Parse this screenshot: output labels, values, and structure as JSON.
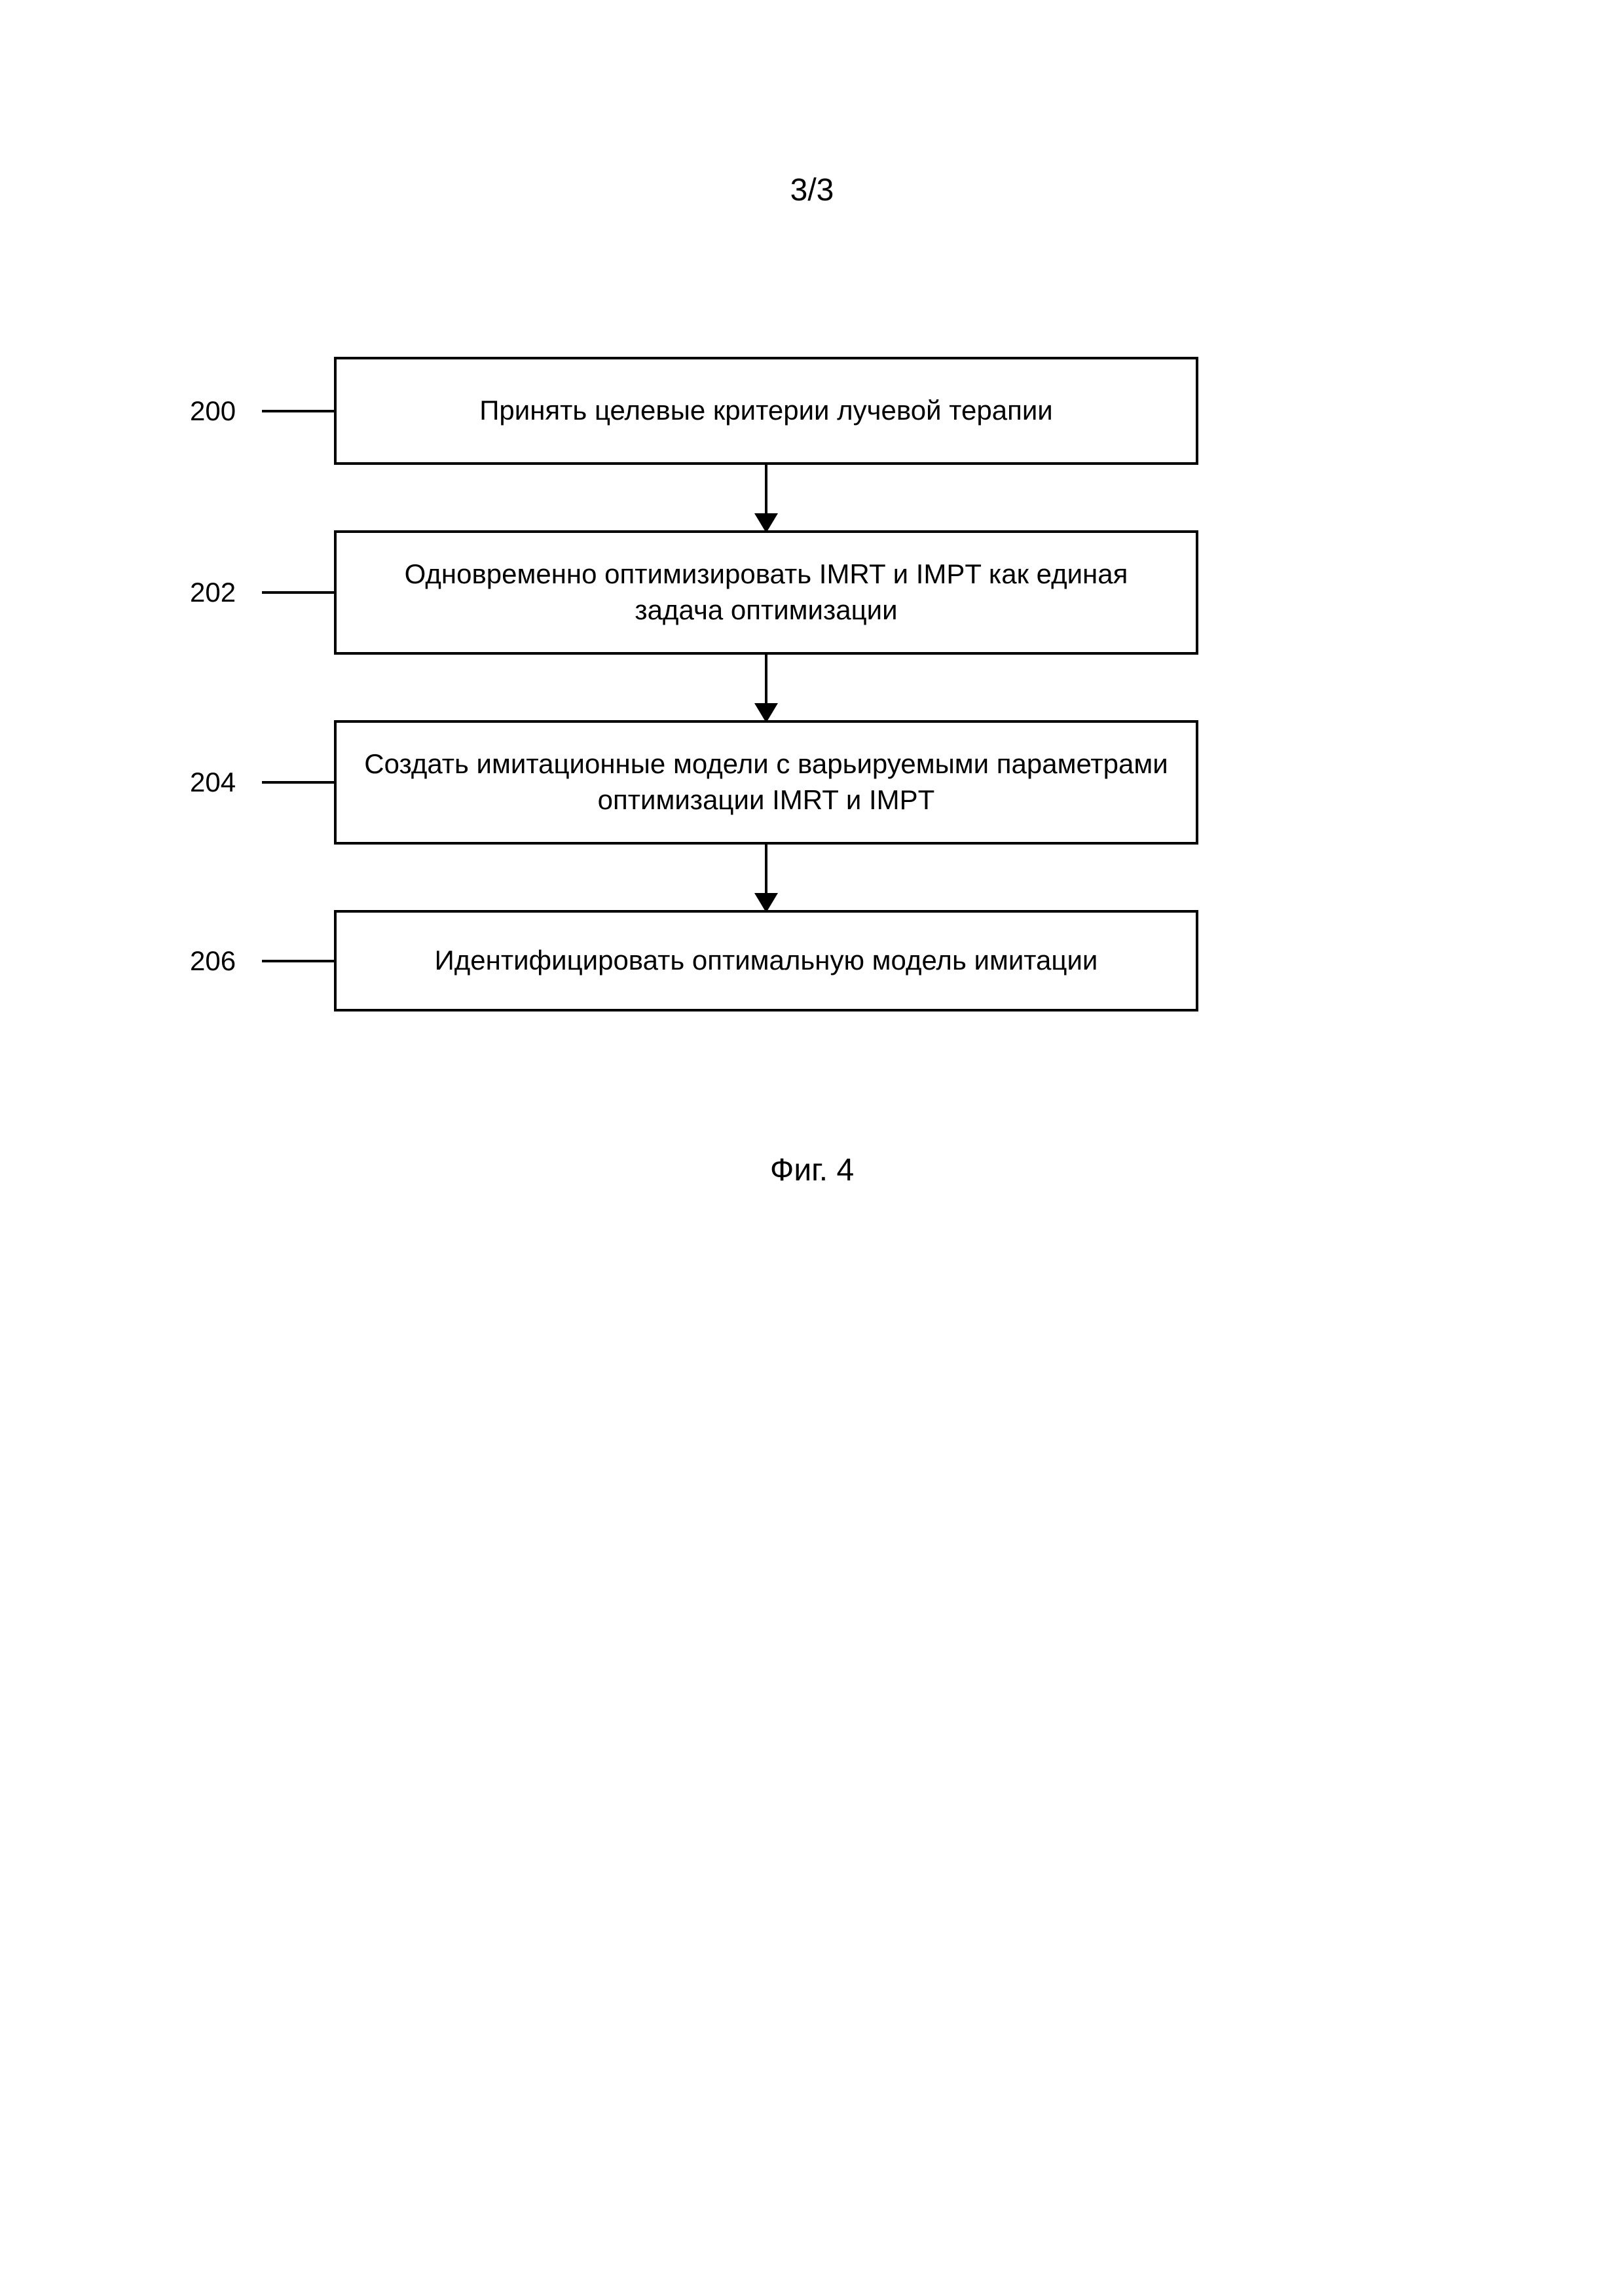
{
  "page_number": "3/3",
  "figure_caption": "Фиг. 4",
  "flowchart": {
    "type": "flowchart",
    "background_color": "#ffffff",
    "box_border_color": "#000000",
    "box_border_width": 4,
    "arrow_color": "#000000",
    "text_color": "#000000",
    "label_fontsize": 42,
    "box_fontsize": 42,
    "steps": [
      {
        "label": "200",
        "text": "Принять целевые критерии лучевой терапии"
      },
      {
        "label": "202",
        "text": "Одновременно оптимизировать IMRT и IMPT как единая задача оптимизации"
      },
      {
        "label": "204",
        "text": "Создать имитационные модели с варьируемыми параметрами оптимизации IMRT и IMPT"
      },
      {
        "label": "206",
        "text": "Идентифицировать оптимальную модель имитации"
      }
    ]
  }
}
